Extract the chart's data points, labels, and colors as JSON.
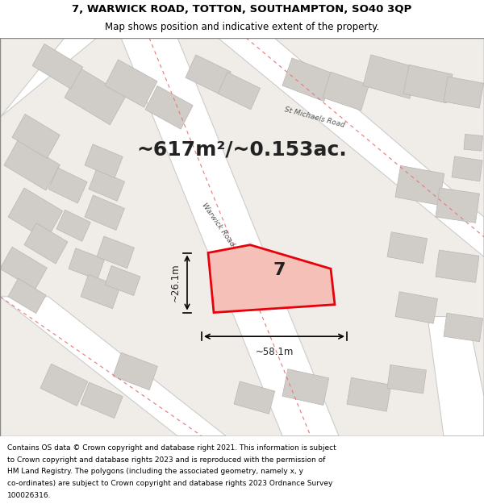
{
  "title_line1": "7, WARWICK ROAD, TOTTON, SOUTHAMPTON, SO40 3QP",
  "title_line2": "Map shows position and indicative extent of the property.",
  "footer_text": "Contains OS data © Crown copyright and database right 2021. This information is subject to Crown copyright and database rights 2023 and is reproduced with the permission of HM Land Registry. The polygons (including the associated geometry, namely x, y co-ordinates) are subject to Crown copyright and database rights 2023 Ordnance Survey 100026316.",
  "area_label": "~617m²/~0.153ac.",
  "property_number": "7",
  "dim_width": "~58.1m",
  "dim_height": "~26.1m",
  "bg_color": "#f0ede8",
  "map_bg": "#f0ede8",
  "road_color": "#ffffff",
  "building_color": "#d8d8d8",
  "building_edge": "#cccccc",
  "property_fill": "#f5c0b8",
  "property_edge": "#e8000a",
  "road_line_color": "#e87878",
  "title_bg": "#ffffff",
  "footer_bg": "#ffffff",
  "map_xlim": [
    0,
    1
  ],
  "map_ylim": [
    0,
    1
  ]
}
